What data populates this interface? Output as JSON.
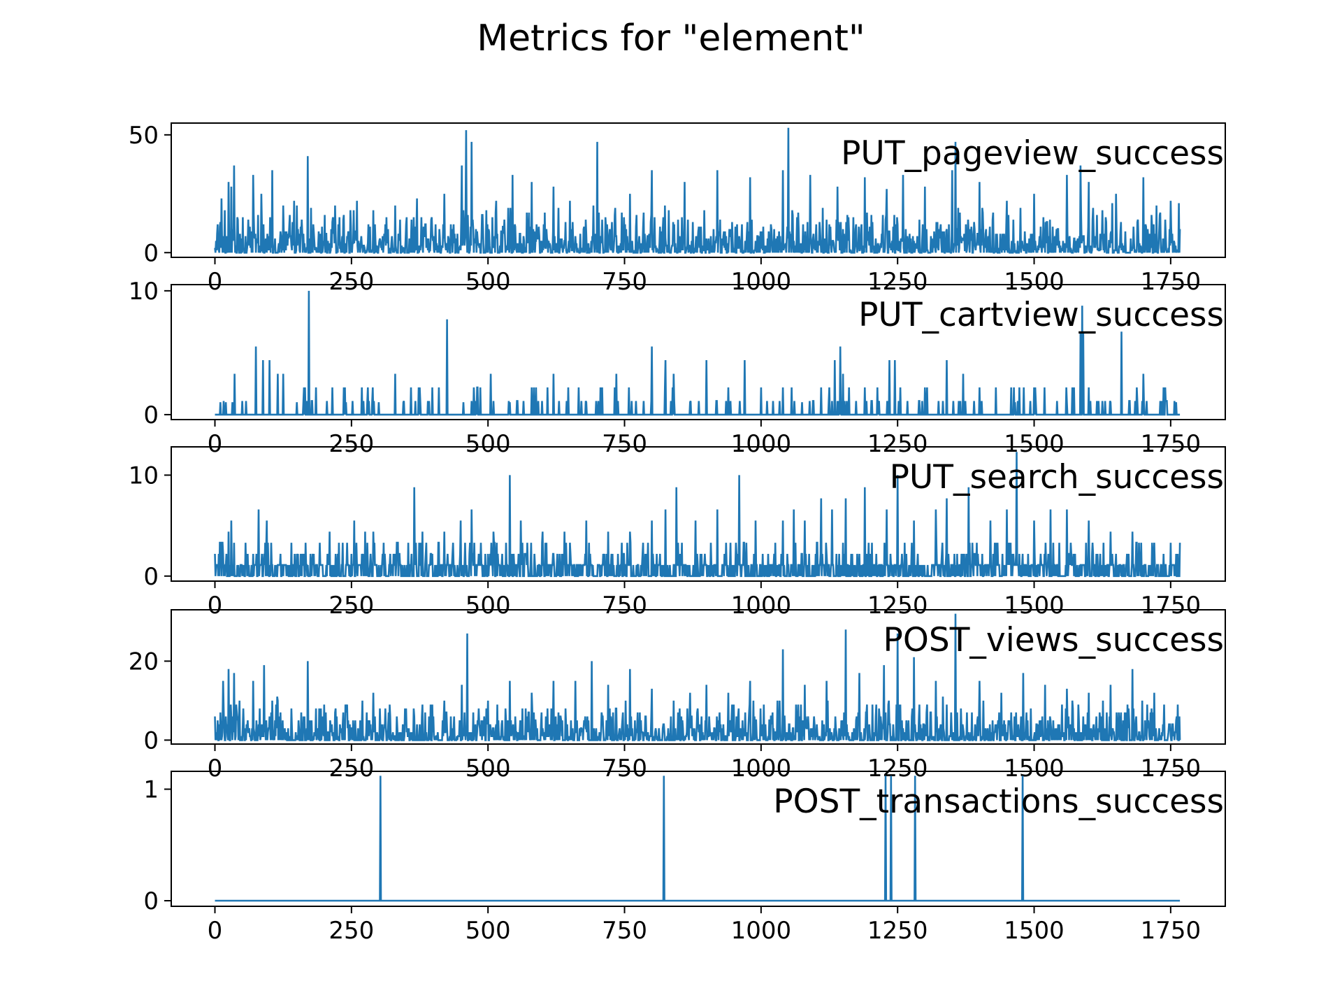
{
  "figure": {
    "title": "Metrics for \"element\"",
    "line_color": "#1f77b4"
  },
  "chart_data": [
    {
      "type": "line",
      "title": "PUT_pageview_success",
      "xlim": [
        -80,
        1850
      ],
      "ylim": [
        -2,
        55
      ],
      "xticks": [
        0,
        250,
        500,
        750,
        1000,
        1250,
        1500,
        1750
      ],
      "yticks": [
        0,
        50
      ],
      "n_points": 1768,
      "baseline": 0,
      "noise_max": 18,
      "series": [
        {
          "values_sparse_note": "sampled peaks",
          "x": [
            5,
            12,
            18,
            25,
            30,
            35,
            70,
            85,
            105,
            125,
            145,
            170,
            220,
            260,
            290,
            330,
            370,
            420,
            452,
            460,
            470,
            515,
            545,
            580,
            620,
            650,
            700,
            760,
            800,
            860,
            920,
            980,
            1040,
            1050,
            1090,
            1140,
            1190,
            1230,
            1260,
            1300,
            1350,
            1356,
            1400,
            1450,
            1500,
            1560,
            1585,
            1600,
            1650,
            1700,
            1750,
            1765
          ],
          "y": [
            12,
            23,
            18,
            30,
            28,
            37,
            33,
            25,
            35,
            20,
            22,
            41,
            20,
            22,
            18,
            20,
            23,
            25,
            37,
            52,
            47,
            22,
            33,
            30,
            28,
            22,
            47,
            25,
            35,
            30,
            35,
            32,
            35,
            53,
            33,
            28,
            32,
            27,
            33,
            28,
            35,
            47,
            30,
            22,
            25,
            33,
            37,
            30,
            25,
            32,
            22,
            21
          ]
        }
      ]
    },
    {
      "type": "line",
      "title": "PUT_cartview_success",
      "xlim": [
        -80,
        1850
      ],
      "ylim": [
        -0.4,
        10.5
      ],
      "xticks": [
        0,
        250,
        500,
        750,
        1000,
        1250,
        1500,
        1750
      ],
      "yticks": [
        0,
        10
      ],
      "n_points": 1768,
      "baseline": 0,
      "series": [
        {
          "x": [
            10,
            20,
            32,
            36,
            75,
            88,
            100,
            115,
            125,
            150,
            165,
            172,
            215,
            240,
            280,
            300,
            330,
            345,
            375,
            410,
            425,
            455,
            505,
            540,
            580,
            620,
            680,
            735,
            758,
            800,
            825,
            840,
            870,
            900,
            940,
            970,
            1000,
            1040,
            1075,
            1110,
            1135,
            1145,
            1150,
            1190,
            1215,
            1235,
            1245,
            1300,
            1340,
            1370,
            1400,
            1430,
            1465,
            1500,
            1560,
            1585,
            1588,
            1590,
            1600,
            1640,
            1660,
            1700,
            1740,
            1760
          ],
          "y": [
            1,
            1,
            1,
            3.3,
            5.5,
            4.4,
            4.4,
            3.3,
            3.3,
            1,
            2.2,
            10,
            2.2,
            1,
            2.2,
            1,
            3.3,
            1,
            2.2,
            2.2,
            7.7,
            1,
            3.3,
            1,
            2.2,
            3.3,
            1,
            3.3,
            2.2,
            5.5,
            4.4,
            3.3,
            1,
            4.4,
            2.2,
            4.4,
            2.2,
            2.2,
            1,
            2.2,
            4.4,
            5.5,
            3.3,
            2.2,
            1,
            4.4,
            4.4,
            2.2,
            4.4,
            3.3,
            2.2,
            2.2,
            1,
            2.2,
            1,
            6.7,
            8.8,
            6.7,
            2.2,
            1,
            6.7,
            3.3,
            2.2,
            1
          ]
        }
      ]
    },
    {
      "type": "line",
      "title": "PUT_search_success",
      "xlim": [
        -80,
        1850
      ],
      "ylim": [
        -0.5,
        12.8
      ],
      "xticks": [
        0,
        250,
        500,
        750,
        1000,
        1250,
        1500,
        1750
      ],
      "yticks": [
        0,
        10
      ],
      "n_points": 1768,
      "baseline": 0,
      "series": [
        {
          "x": [
            5,
            15,
            25,
            30,
            35,
            60,
            80,
            95,
            120,
            150,
            175,
            210,
            255,
            275,
            290,
            335,
            365,
            380,
            420,
            450,
            470,
            510,
            540,
            560,
            600,
            640,
            680,
            720,
            760,
            800,
            825,
            845,
            880,
            920,
            960,
            990,
            1040,
            1060,
            1080,
            1110,
            1130,
            1155,
            1190,
            1230,
            1250,
            1280,
            1320,
            1340,
            1380,
            1420,
            1450,
            1468,
            1500,
            1530,
            1560,
            1600,
            1640,
            1680,
            1720,
            1760
          ],
          "y": [
            1.1,
            2.2,
            4.4,
            5.5,
            3.3,
            2.2,
            6.6,
            5.5,
            2.2,
            2.2,
            2.2,
            4.4,
            5.5,
            4.4,
            4.4,
            3.3,
            8.8,
            4.4,
            4.4,
            5.5,
            6.6,
            4.4,
            10,
            5.5,
            4.4,
            4.4,
            5.5,
            4.4,
            4.4,
            5.5,
            6.6,
            8.8,
            5.5,
            6.6,
            10,
            5.5,
            5.5,
            6.6,
            5.5,
            7.7,
            6.6,
            7.7,
            8.8,
            6.6,
            10,
            5.5,
            6.6,
            7.7,
            8.8,
            5.5,
            6.6,
            12.3,
            5.5,
            6.6,
            6.6,
            5.5,
            4.4,
            4.4,
            3.3,
            2.2
          ]
        }
      ]
    },
    {
      "type": "line",
      "title": "POST_views_success",
      "xlim": [
        -80,
        1850
      ],
      "ylim": [
        -1,
        33
      ],
      "xticks": [
        0,
        250,
        500,
        750,
        1000,
        1250,
        1500,
        1750
      ],
      "yticks": [
        0,
        20
      ],
      "n_points": 1768,
      "baseline": 0,
      "series": [
        {
          "x": [
            5,
            15,
            25,
            35,
            45,
            70,
            90,
            115,
            140,
            170,
            200,
            240,
            270,
            290,
            320,
            350,
            380,
            420,
            452,
            462,
            500,
            540,
            580,
            620,
            660,
            690,
            720,
            760,
            800,
            840,
            870,
            900,
            940,
            980,
            1040,
            1080,
            1120,
            1155,
            1180,
            1225,
            1250,
            1280,
            1320,
            1356,
            1400,
            1440,
            1480,
            1520,
            1560,
            1600,
            1640,
            1680,
            1720,
            1760
          ],
          "y": [
            5,
            15,
            18,
            17,
            10,
            15,
            19,
            10,
            8,
            20,
            9,
            8,
            10,
            12,
            9,
            8,
            9,
            10,
            14,
            27,
            10,
            15,
            12,
            15,
            15,
            20,
            14,
            18,
            13,
            10,
            12,
            14,
            12,
            15,
            23,
            14,
            15,
            28,
            17,
            19,
            27,
            21,
            15,
            32,
            15,
            12,
            17,
            14,
            13,
            12,
            14,
            18,
            12,
            5
          ]
        }
      ]
    },
    {
      "type": "line",
      "title": "POST_transactions_success",
      "xlim": [
        -80,
        1850
      ],
      "ylim": [
        -0.05,
        1.16
      ],
      "xticks": [
        0,
        250,
        500,
        750,
        1000,
        1250,
        1500,
        1750
      ],
      "yticks": [
        0,
        1
      ],
      "n_points": 1768,
      "baseline": 0,
      "series": [
        {
          "x": [
            303,
            822,
            1228,
            1238,
            1282,
            1479
          ],
          "y": [
            1.12,
            1.12,
            1.12,
            1.12,
            1.12,
            1.12
          ]
        }
      ]
    }
  ]
}
